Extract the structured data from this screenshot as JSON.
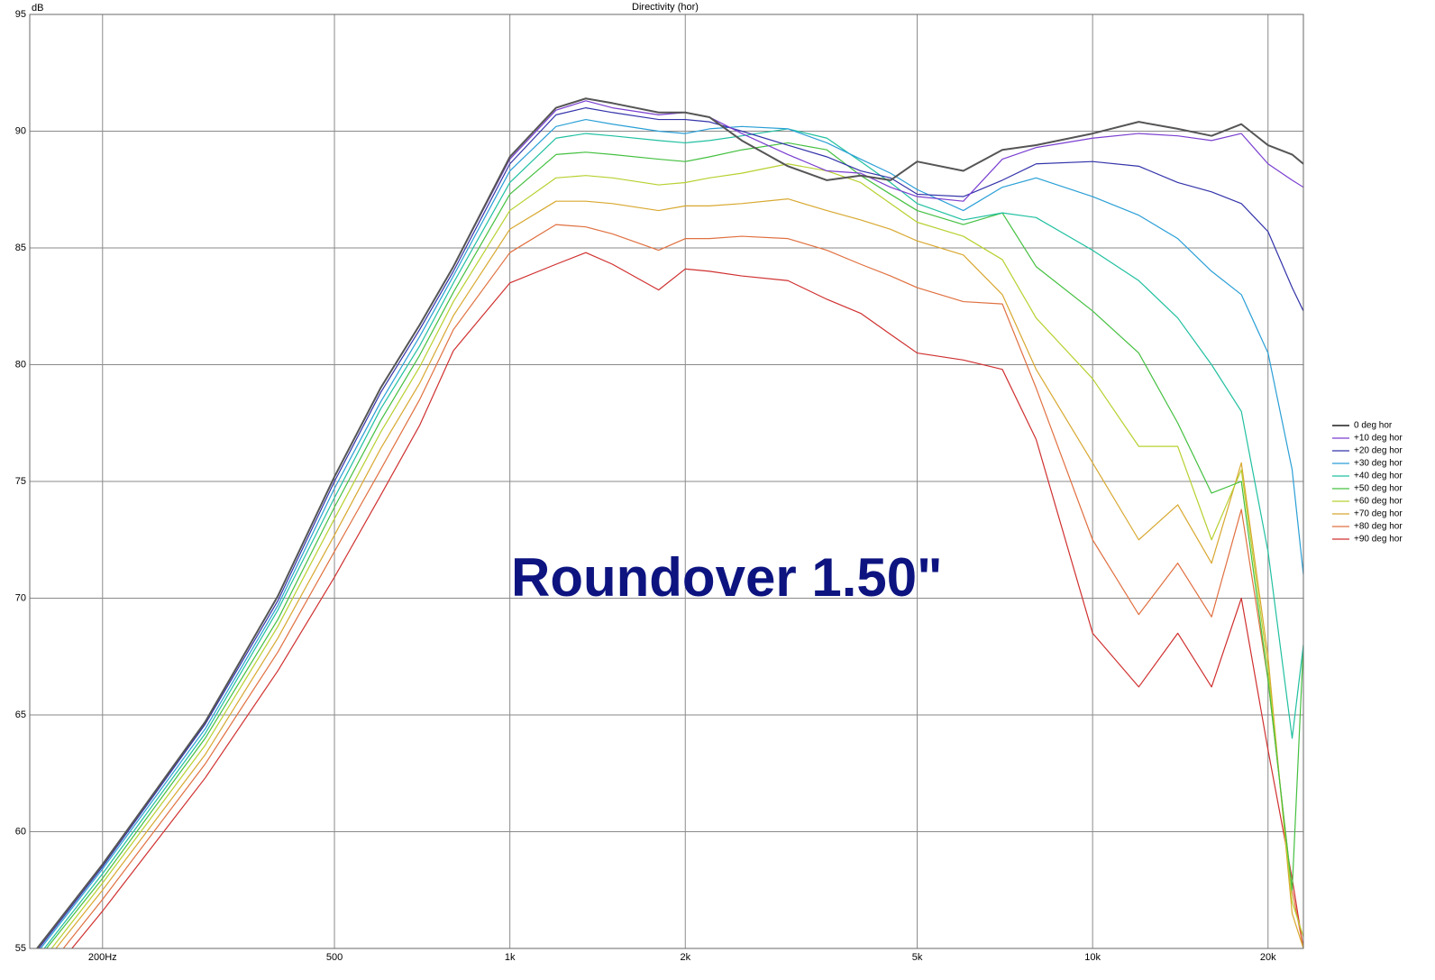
{
  "chart_data": {
    "type": "line",
    "title": "Directivity (hor)",
    "y_label": "dB",
    "annotation": "Roundover 1.50\"",
    "log_x": true,
    "grid": true,
    "legend": "right",
    "xlim": [
      150,
      23000
    ],
    "ylim": [
      55,
      95
    ],
    "xticks": [
      {
        "value": 200,
        "label": "200Hz"
      },
      500,
      {
        "value": 1000,
        "label": "1k"
      },
      {
        "value": 2000,
        "label": "2k"
      },
      {
        "value": 5000,
        "label": "5k"
      },
      {
        "value": 10000,
        "label": "10k"
      },
      {
        "value": 20000,
        "label": "20k"
      }
    ],
    "yticks": [
      55,
      60,
      65,
      70,
      75,
      80,
      85,
      90,
      95
    ],
    "x": [
      150,
      200,
      300,
      400,
      500,
      600,
      700,
      800,
      1000,
      1200,
      1350,
      1500,
      1800,
      2000,
      2200,
      2500,
      3000,
      3500,
      4000,
      4500,
      5000,
      6000,
      7000,
      8000,
      10000,
      12000,
      14000,
      16000,
      18000,
      20000,
      22000,
      23000
    ],
    "series": [
      {
        "name": "0 deg hor",
        "color": "#555555",
        "values": [
          54.6,
          58.6,
          64.7,
          70.1,
          75.2,
          79.0,
          81.7,
          84.2,
          88.9,
          91.0,
          91.4,
          91.2,
          90.8,
          90.8,
          90.6,
          89.6,
          88.5,
          87.9,
          88.1,
          87.9,
          88.7,
          88.3,
          89.2,
          89.4,
          89.9,
          90.4,
          90.1,
          89.8,
          90.3,
          89.4,
          89.0,
          88.6
        ]
      },
      {
        "name": "+10 deg hor",
        "color": "#7a3fd0",
        "values": [
          54.6,
          58.6,
          64.7,
          70.1,
          75.2,
          79.0,
          81.7,
          84.2,
          88.8,
          90.9,
          91.3,
          91.0,
          90.7,
          90.8,
          90.6,
          89.9,
          89.0,
          88.3,
          88.2,
          87.6,
          87.2,
          87.0,
          88.8,
          89.3,
          89.7,
          89.9,
          89.8,
          89.6,
          89.9,
          88.6,
          87.9,
          87.6
        ]
      },
      {
        "name": "+20 deg hor",
        "color": "#3333aa",
        "values": [
          54.5,
          58.5,
          64.6,
          69.9,
          75.0,
          78.8,
          81.5,
          84.0,
          88.6,
          90.7,
          91.0,
          90.8,
          90.5,
          90.5,
          90.4,
          90.0,
          89.4,
          88.9,
          88.3,
          88.0,
          87.3,
          87.2,
          87.9,
          88.6,
          88.7,
          88.5,
          87.8,
          87.4,
          86.9,
          85.7,
          83.3,
          82.3
        ]
      },
      {
        "name": "+30 deg hor",
        "color": "#2a9fd6",
        "values": [
          54.4,
          58.4,
          64.4,
          69.7,
          74.7,
          78.4,
          81.2,
          83.8,
          88.3,
          90.2,
          90.5,
          90.3,
          90.0,
          89.9,
          90.1,
          90.2,
          90.1,
          89.5,
          88.8,
          88.2,
          87.5,
          86.6,
          87.6,
          88.0,
          87.2,
          86.4,
          85.4,
          84.0,
          83.0,
          80.5,
          75.5,
          71.0
        ]
      },
      {
        "name": "+40 deg hor",
        "color": "#20c0a0",
        "values": [
          54.2,
          58.2,
          64.2,
          69.5,
          74.3,
          78.1,
          80.8,
          83.5,
          87.8,
          89.7,
          89.9,
          89.8,
          89.6,
          89.5,
          89.6,
          89.8,
          90.1,
          89.7,
          88.7,
          87.8,
          86.9,
          86.2,
          86.5,
          86.3,
          84.9,
          83.6,
          82.0,
          80.0,
          78.0,
          72.0,
          64.0,
          68.0
        ]
      },
      {
        "name": "+50 deg hor",
        "color": "#44c040",
        "values": [
          54.1,
          58.0,
          64.0,
          69.1,
          73.9,
          77.6,
          80.4,
          83.1,
          87.3,
          89.0,
          89.1,
          89.0,
          88.8,
          88.7,
          88.9,
          89.2,
          89.5,
          89.2,
          88.1,
          87.3,
          86.6,
          86.0,
          86.5,
          84.2,
          82.3,
          80.5,
          77.5,
          74.5,
          75.0,
          66.5,
          57.5,
          68.0
        ]
      },
      {
        "name": "+60 deg hor",
        "color": "#b8d030",
        "values": [
          53.8,
          57.8,
          63.7,
          68.8,
          73.4,
          77.1,
          79.9,
          82.7,
          86.6,
          88.0,
          88.1,
          88.0,
          87.7,
          87.8,
          88.0,
          88.2,
          88.6,
          88.3,
          87.8,
          86.9,
          86.1,
          85.5,
          84.5,
          82.0,
          79.4,
          76.5,
          76.5,
          72.5,
          75.5,
          67.0,
          57.0,
          55.5
        ]
      },
      {
        "name": "+70 deg hor",
        "color": "#d8a830",
        "values": [
          53.6,
          57.5,
          63.3,
          68.3,
          72.7,
          76.4,
          79.2,
          82.1,
          85.8,
          87.0,
          87.0,
          86.9,
          86.6,
          86.8,
          86.8,
          86.9,
          87.1,
          86.6,
          86.2,
          85.8,
          85.3,
          84.7,
          83.0,
          79.8,
          75.8,
          72.5,
          74.0,
          71.5,
          75.8,
          67.5,
          56.5,
          55.0
        ]
      },
      {
        "name": "+80 deg hor",
        "color": "#e07040",
        "values": [
          53.2,
          57.1,
          62.9,
          67.7,
          72.0,
          75.5,
          78.5,
          81.5,
          84.8,
          86.0,
          85.9,
          85.6,
          84.9,
          85.4,
          85.4,
          85.5,
          85.4,
          84.9,
          84.3,
          83.8,
          83.3,
          82.7,
          82.6,
          79.0,
          72.5,
          69.3,
          71.5,
          69.2,
          73.8,
          66.5,
          57.5,
          55.0
        ]
      },
      {
        "name": "+90 deg hor",
        "color": "#d03030",
        "values": [
          52.8,
          56.6,
          62.3,
          66.9,
          70.9,
          74.4,
          77.4,
          80.6,
          83.5,
          84.3,
          84.8,
          84.3,
          83.2,
          84.1,
          84.0,
          83.8,
          83.6,
          82.8,
          82.2,
          81.3,
          80.5,
          80.2,
          79.8,
          76.8,
          68.5,
          66.2,
          68.5,
          66.2,
          70.0,
          63.5,
          58.0,
          55.0
        ]
      }
    ]
  }
}
